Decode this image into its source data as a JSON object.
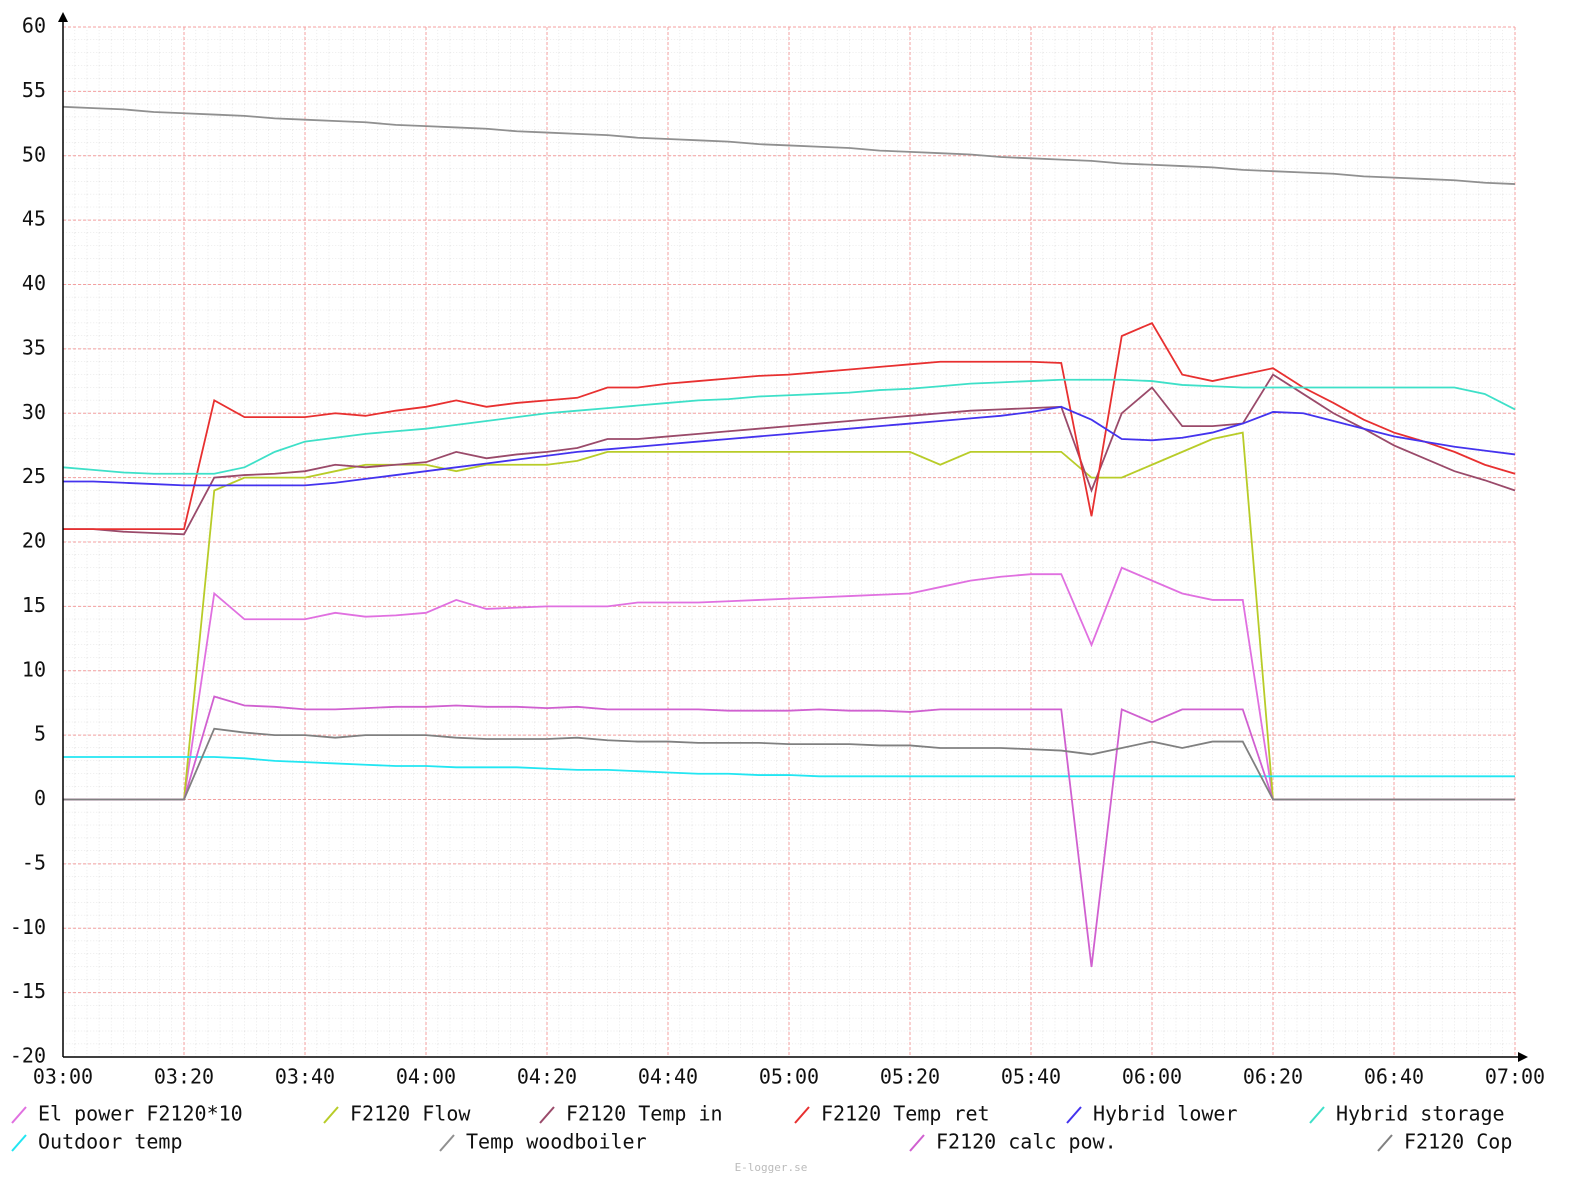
{
  "chart_data": {
    "type": "line",
    "x": [
      "03:00",
      "03:05",
      "03:10",
      "03:15",
      "03:20",
      "03:25",
      "03:30",
      "03:35",
      "03:40",
      "03:45",
      "03:50",
      "03:55",
      "04:00",
      "04:05",
      "04:10",
      "04:15",
      "04:20",
      "04:25",
      "04:30",
      "04:35",
      "04:40",
      "04:45",
      "04:50",
      "04:55",
      "05:00",
      "05:05",
      "05:10",
      "05:15",
      "05:20",
      "05:25",
      "05:30",
      "05:35",
      "05:40",
      "05:45",
      "05:50",
      "05:55",
      "06:00",
      "06:05",
      "06:10",
      "06:15",
      "06:20",
      "06:25",
      "06:30",
      "06:35",
      "06:40",
      "06:45",
      "06:50",
      "06:55",
      "07:00"
    ],
    "xlim": [
      "03:00",
      "07:00"
    ],
    "xticks": [
      "03:00",
      "03:20",
      "03:40",
      "04:00",
      "04:20",
      "04:40",
      "05:00",
      "05:20",
      "05:40",
      "06:00",
      "06:20",
      "06:40",
      "07:00"
    ],
    "ylim": [
      -20,
      60
    ],
    "yticks": [
      -20,
      -15,
      -10,
      -5,
      0,
      5,
      10,
      15,
      20,
      25,
      30,
      35,
      40,
      45,
      50,
      55,
      60
    ],
    "grid": true,
    "series": [
      {
        "name": "El power F2120*10",
        "color": "#e070e0",
        "values": [
          0,
          0,
          0,
          0,
          0,
          16,
          14,
          14,
          14,
          14.5,
          14.2,
          14.3,
          14.5,
          15.5,
          14.8,
          14.9,
          15,
          15,
          15,
          15.3,
          15.3,
          15.3,
          15.4,
          15.5,
          15.6,
          15.7,
          15.8,
          15.9,
          16,
          16.5,
          17,
          17.3,
          17.5,
          17.5,
          12,
          18,
          17,
          16,
          15.5,
          15.5,
          0,
          0,
          0,
          0,
          0,
          0,
          0,
          0,
          0
        ]
      },
      {
        "name": "F2120 Flow",
        "color": "#b8cc28",
        "values": [
          0,
          0,
          0,
          0,
          0,
          24,
          25,
          25,
          25,
          25.5,
          26,
          26,
          26,
          25.5,
          26,
          26,
          26,
          26.3,
          27,
          27,
          27,
          27,
          27,
          27,
          27,
          27,
          27,
          27,
          27,
          26,
          27,
          27,
          27,
          27,
          25,
          25,
          26,
          27,
          28,
          28.5,
          0,
          0,
          0,
          0,
          0,
          0,
          0,
          0,
          0
        ]
      },
      {
        "name": "F2120 Temp in",
        "color": "#9a4a6a",
        "values": [
          21,
          21,
          20.8,
          20.7,
          20.6,
          25,
          25.2,
          25.3,
          25.5,
          26,
          25.8,
          26,
          26.2,
          27,
          26.5,
          26.8,
          27,
          27.3,
          28,
          28,
          28.2,
          28.4,
          28.6,
          28.8,
          29,
          29.2,
          29.4,
          29.6,
          29.8,
          30,
          30.2,
          30.3,
          30.4,
          30.5,
          24,
          30,
          32,
          29,
          29,
          29.2,
          33,
          31.5,
          30,
          28.8,
          27.5,
          26.5,
          25.5,
          24.8,
          24
        ]
      },
      {
        "name": "F2120 Temp ret",
        "color": "#e83030",
        "values": [
          21,
          21,
          21,
          21,
          21,
          31,
          29.7,
          29.7,
          29.7,
          30,
          29.8,
          30.2,
          30.5,
          31,
          30.5,
          30.8,
          31,
          31.2,
          32,
          32,
          32.3,
          32.5,
          32.7,
          32.9,
          33,
          33.2,
          33.4,
          33.6,
          33.8,
          34,
          34,
          34,
          34,
          33.9,
          22,
          36,
          37,
          33,
          32.5,
          33,
          33.5,
          32,
          30.8,
          29.5,
          28.5,
          27.8,
          27,
          26,
          25.3
        ]
      },
      {
        "name": "Hybrid lower",
        "color": "#4433ee",
        "values": [
          24.7,
          24.7,
          24.6,
          24.5,
          24.4,
          24.4,
          24.4,
          24.4,
          24.4,
          24.6,
          24.9,
          25.2,
          25.5,
          25.8,
          26.1,
          26.4,
          26.7,
          27,
          27.2,
          27.4,
          27.6,
          27.8,
          28,
          28.2,
          28.4,
          28.6,
          28.8,
          29,
          29.2,
          29.4,
          29.6,
          29.8,
          30.1,
          30.5,
          29.5,
          28,
          27.9,
          28.1,
          28.5,
          29.2,
          30.1,
          30,
          29.4,
          28.8,
          28.2,
          27.8,
          27.4,
          27.1,
          26.8
        ]
      },
      {
        "name": "Hybrid storage",
        "color": "#3ee0c8",
        "values": [
          25.8,
          25.6,
          25.4,
          25.3,
          25.3,
          25.3,
          25.8,
          27,
          27.8,
          28.1,
          28.4,
          28.6,
          28.8,
          29.1,
          29.4,
          29.7,
          30,
          30.2,
          30.4,
          30.6,
          30.8,
          31,
          31.1,
          31.3,
          31.4,
          31.5,
          31.6,
          31.8,
          31.9,
          32.1,
          32.3,
          32.4,
          32.5,
          32.6,
          32.6,
          32.6,
          32.5,
          32.2,
          32.1,
          32,
          32,
          32,
          32,
          32,
          32,
          32,
          32,
          31.5,
          30.3
        ]
      },
      {
        "name": "Outdoor temp",
        "color": "#22e6f2",
        "values": [
          3.3,
          3.3,
          3.3,
          3.3,
          3.3,
          3.3,
          3.2,
          3.0,
          2.9,
          2.8,
          2.7,
          2.6,
          2.6,
          2.5,
          2.5,
          2.5,
          2.4,
          2.3,
          2.3,
          2.2,
          2.1,
          2.0,
          2.0,
          1.9,
          1.9,
          1.8,
          1.8,
          1.8,
          1.8,
          1.8,
          1.8,
          1.8,
          1.8,
          1.8,
          1.8,
          1.8,
          1.8,
          1.8,
          1.8,
          1.8,
          1.8,
          1.8,
          1.8,
          1.8,
          1.8,
          1.8,
          1.8,
          1.8,
          1.8
        ]
      },
      {
        "name": "Temp woodboiler",
        "color": "#909090",
        "values": [
          53.8,
          53.7,
          53.6,
          53.4,
          53.3,
          53.2,
          53.1,
          52.9,
          52.8,
          52.7,
          52.6,
          52.4,
          52.3,
          52.2,
          52.1,
          51.9,
          51.8,
          51.7,
          51.6,
          51.4,
          51.3,
          51.2,
          51.1,
          50.9,
          50.8,
          50.7,
          50.6,
          50.4,
          50.3,
          50.2,
          50.1,
          49.9,
          49.8,
          49.7,
          49.6,
          49.4,
          49.3,
          49.2,
          49.1,
          48.9,
          48.8,
          48.7,
          48.6,
          48.4,
          48.3,
          48.2,
          48.1,
          47.9,
          47.8
        ]
      },
      {
        "name": "F2120 calc pow.",
        "color": "#d060d0",
        "values": [
          0,
          0,
          0,
          0,
          0,
          8,
          7.3,
          7.2,
          7,
          7,
          7.1,
          7.2,
          7.2,
          7.3,
          7.2,
          7.2,
          7.1,
          7.2,
          7,
          7,
          7,
          7,
          6.9,
          6.9,
          6.9,
          7,
          6.9,
          6.9,
          6.8,
          7,
          7,
          7,
          7,
          7,
          -13,
          7,
          6,
          7,
          7,
          7,
          0,
          0,
          0,
          0,
          0,
          0,
          0,
          0,
          0
        ]
      },
      {
        "name": "F2120 Cop",
        "color": "#808080",
        "values": [
          0,
          0,
          0,
          0,
          0,
          5.5,
          5.2,
          5,
          5,
          4.8,
          5,
          5,
          5,
          4.8,
          4.7,
          4.7,
          4.7,
          4.8,
          4.6,
          4.5,
          4.5,
          4.4,
          4.4,
          4.4,
          4.3,
          4.3,
          4.3,
          4.2,
          4.2,
          4,
          4,
          4,
          3.9,
          3.8,
          3.5,
          4,
          4.5,
          4,
          4.5,
          4.5,
          0,
          0,
          0,
          0,
          0,
          0,
          0,
          0,
          0
        ]
      }
    ],
    "footer": "E-logger.se"
  }
}
